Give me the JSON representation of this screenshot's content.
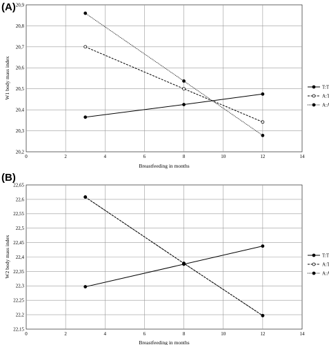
{
  "chart_data": [
    {
      "type": "line",
      "panel_label": "(A)",
      "xlabel": "Breastfeeding in months",
      "ylabel": "W1 body mass index",
      "xlim": [
        0,
        14
      ],
      "ylim": [
        20.2,
        20.9
      ],
      "x_ticks": [
        "0",
        "2",
        "4",
        "6",
        "8",
        "10",
        "12",
        "14"
      ],
      "y_ticks": [
        "20,2",
        "20,3",
        "20,4",
        "20,5",
        "20,6",
        "20,7",
        "20,8",
        "20,9"
      ],
      "grid": true,
      "legend_position": "right",
      "x": [
        3,
        8,
        12
      ],
      "series": [
        {
          "name": "T:T",
          "values": [
            20.365,
            20.425,
            20.475
          ],
          "line_style": "solid",
          "marker": "filled-circle"
        },
        {
          "name": "A:T",
          "values": [
            20.7,
            20.5,
            20.342
          ],
          "line_style": "dashed",
          "marker": "open-circle"
        },
        {
          "name": "A:A",
          "values": [
            20.86,
            20.537,
            20.278
          ],
          "line_style": "dotted",
          "marker": "filled-circle"
        }
      ]
    },
    {
      "type": "line",
      "panel_label": "(B)",
      "xlabel": "Breastfeeding in months",
      "ylabel": "W2 body mass index",
      "xlim": [
        0,
        14
      ],
      "ylim": [
        22.15,
        22.65
      ],
      "x_ticks": [
        "0",
        "2",
        "4",
        "6",
        "8",
        "10",
        "12",
        "14"
      ],
      "y_ticks": [
        "22,15",
        "22,2",
        "22,25",
        "22,3",
        "22,35",
        "22,4",
        "22,45",
        "22,5",
        "22,55",
        "22,6",
        "22,65"
      ],
      "grid": true,
      "legend_position": "right",
      "x": [
        3,
        8,
        12
      ],
      "series": [
        {
          "name": "T:T",
          "values": [
            22.297,
            22.375,
            22.438
          ],
          "line_style": "solid",
          "marker": "filled-circle"
        },
        {
          "name": "A:T",
          "values": [
            22.608,
            22.378,
            22.197
          ],
          "line_style": "dashed",
          "marker": "open-circle"
        },
        {
          "name": "A:A",
          "values": [
            22.608,
            22.378,
            22.197
          ],
          "line_style": "dotted",
          "marker": "filled-circle"
        }
      ]
    }
  ]
}
